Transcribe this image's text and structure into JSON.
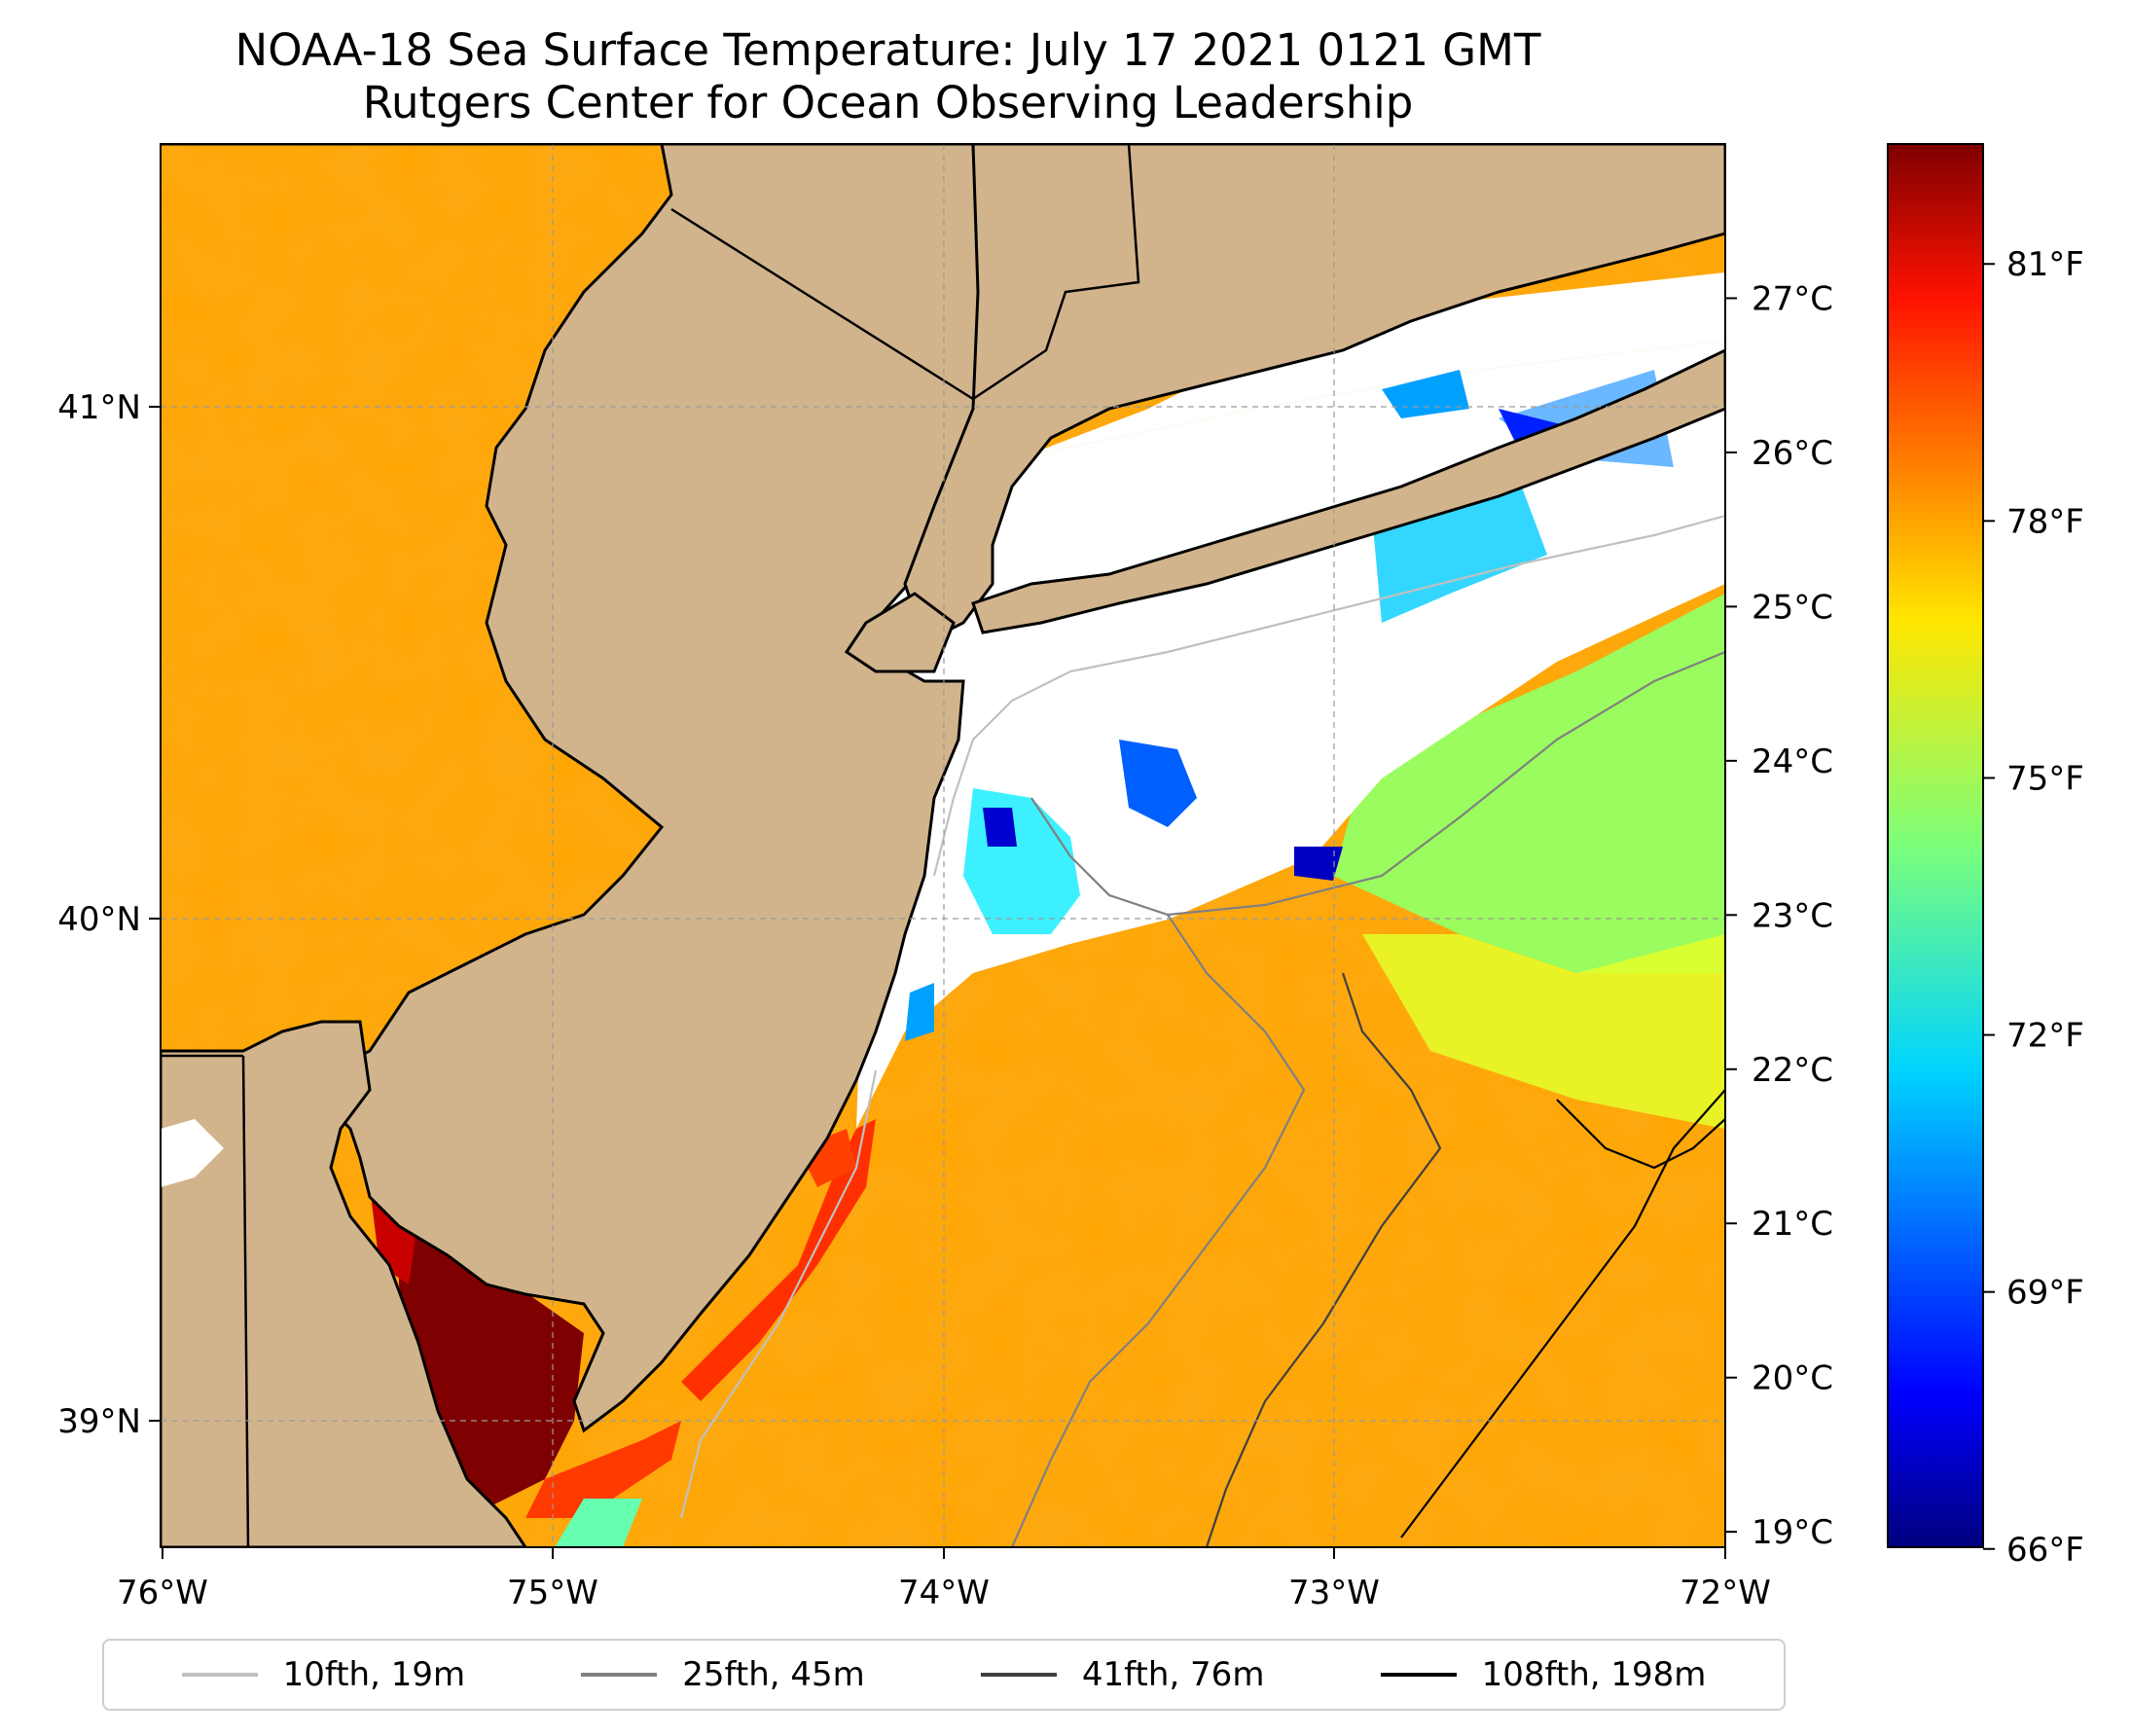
{
  "title": {
    "line1": "NOAA-18 Sea Surface Temperature: July 17 2021 0121 GMT",
    "line2": "Rutgers Center for Ocean Observing Leadership"
  },
  "map": {
    "type": "sea_surface_temperature_map",
    "lon_ticks": [
      "76°W",
      "75°W",
      "74°W",
      "73°W",
      "72°W"
    ],
    "lat_ticks": [
      "41°N",
      "40°N",
      "39°N"
    ],
    "extent": {
      "lon": [
        -76,
        -72
      ],
      "lat": [
        38.75,
        41.5
      ]
    },
    "land_color": "#d2b48c",
    "no_data_color": "#ffffff",
    "gridlines": true
  },
  "colorbar": {
    "colormap": "jet",
    "celsius_ticks": [
      "27°C",
      "26°C",
      "25°C",
      "24°C",
      "23°C",
      "22°C",
      "21°C",
      "20°C",
      "19°C"
    ],
    "fahrenheit_ticks": [
      "81°F",
      "78°F",
      "75°F",
      "72°F",
      "69°F",
      "66°F"
    ],
    "range_celsius": [
      18.9,
      28.0
    ]
  },
  "legend": {
    "items": [
      {
        "label": "10fth, 19m",
        "color": "#c0c0c0"
      },
      {
        "label": "25fth, 45m",
        "color": "#808080"
      },
      {
        "label": "41fth, 76m",
        "color": "#404040"
      },
      {
        "label": "108fth, 198m",
        "color": "#000000"
      }
    ]
  }
}
